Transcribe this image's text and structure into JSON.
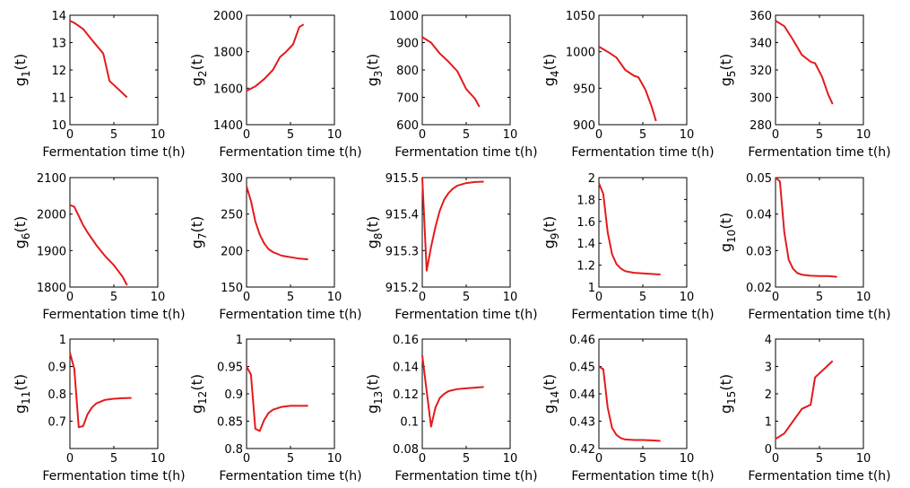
{
  "colors": {
    "series": "#e41a1c",
    "axes": "#000000",
    "background": "#ffffff"
  },
  "chart_data": [
    {
      "type": "line",
      "ylabel": "g_1(t)",
      "sub": "1",
      "xlabel": "Fermentation time t(h)",
      "xlim": [
        0,
        10
      ],
      "ylim": [
        10,
        14
      ],
      "xticks": [
        "0",
        "5",
        "10"
      ],
      "yticks": [
        "10",
        "11",
        "12",
        "13",
        "14"
      ],
      "series": [
        {
          "x": [
            0,
            0.5,
            1.5,
            2.5,
            3.8,
            4.5,
            5.5,
            6.5
          ],
          "y": [
            13.8,
            13.72,
            13.5,
            13.1,
            12.6,
            11.6,
            11.3,
            11.0
          ]
        }
      ]
    },
    {
      "type": "line",
      "ylabel": "g_2(t)",
      "sub": "2",
      "xlabel": "Fermentation time t(h)",
      "xlim": [
        0,
        10
      ],
      "ylim": [
        1400,
        2000
      ],
      "xticks": [
        "0",
        "5",
        "10"
      ],
      "yticks": [
        "1400",
        "1600",
        "1800",
        "2000"
      ],
      "series": [
        {
          "x": [
            0,
            1,
            2,
            3,
            3.8,
            4.5,
            5.3,
            6,
            6.5
          ],
          "y": [
            1585,
            1610,
            1650,
            1700,
            1770,
            1800,
            1840,
            1935,
            1950
          ]
        }
      ]
    },
    {
      "type": "line",
      "ylabel": "g_3(t)",
      "sub": "3",
      "xlabel": "Fermentation time t(h)",
      "xlim": [
        0,
        10
      ],
      "ylim": [
        600,
        1000
      ],
      "xticks": [
        "0",
        "5",
        "10"
      ],
      "yticks": [
        "600",
        "700",
        "800",
        "900",
        "1000"
      ],
      "series": [
        {
          "x": [
            0,
            1,
            2,
            3,
            4,
            5,
            6,
            6.5
          ],
          "y": [
            920,
            900,
            860,
            830,
            795,
            730,
            695,
            665
          ]
        }
      ]
    },
    {
      "type": "line",
      "ylabel": "g_4(t)",
      "sub": "4",
      "xlabel": "Fermentation time t(h)",
      "xlim": [
        0,
        10
      ],
      "ylim": [
        900,
        1050
      ],
      "xticks": [
        "0",
        "5",
        "10"
      ],
      "yticks": [
        "900",
        "950",
        "1000",
        "1050"
      ],
      "series": [
        {
          "x": [
            0,
            1,
            2,
            3,
            4,
            4.5,
            5.3,
            6,
            6.5
          ],
          "y": [
            1007,
            1000,
            992,
            975,
            967,
            965,
            948,
            925,
            905
          ]
        }
      ]
    },
    {
      "type": "line",
      "ylabel": "g_5(t)",
      "sub": "5",
      "xlabel": "Fermentation time t(h)",
      "xlim": [
        0,
        10
      ],
      "ylim": [
        280,
        360
      ],
      "xticks": [
        "0",
        "5",
        "10"
      ],
      "yticks": [
        "280",
        "300",
        "320",
        "340",
        "360"
      ],
      "series": [
        {
          "x": [
            0,
            1,
            2,
            3,
            4,
            4.5,
            5.3,
            6,
            6.5
          ],
          "y": [
            356,
            352,
            342,
            331,
            326,
            325,
            315,
            302,
            295
          ]
        }
      ]
    },
    {
      "type": "line",
      "ylabel": "g_6(t)",
      "sub": "6",
      "xlabel": "Fermentation time t(h)",
      "xlim": [
        0,
        10
      ],
      "ylim": [
        1800,
        2100
      ],
      "xticks": [
        "0",
        "5",
        "10"
      ],
      "yticks": [
        "1800",
        "1900",
        "2000",
        "2100"
      ],
      "series": [
        {
          "x": [
            0,
            0.5,
            1,
            1.5,
            2,
            3,
            4,
            5,
            6,
            6.5
          ],
          "y": [
            2025,
            2020,
            1995,
            1970,
            1950,
            1915,
            1885,
            1860,
            1828,
            1805
          ]
        }
      ]
    },
    {
      "type": "line",
      "ylabel": "g_7(t)",
      "sub": "7",
      "xlabel": "Fermentation time t(h)",
      "xlim": [
        0,
        10
      ],
      "ylim": [
        150,
        300
      ],
      "xticks": [
        "0",
        "5",
        "10"
      ],
      "yticks": [
        "150",
        "200",
        "250",
        "300"
      ],
      "series": [
        {
          "x": [
            0,
            0.5,
            1,
            1.5,
            2,
            2.5,
            3,
            4,
            5,
            6,
            7
          ],
          "y": [
            288,
            268,
            240,
            222,
            210,
            202,
            198,
            193,
            191,
            189,
            188
          ]
        }
      ]
    },
    {
      "type": "line",
      "ylabel": "g_8(t)",
      "sub": "8",
      "xlabel": "Fermentation time t(h)",
      "xlim": [
        0,
        10
      ],
      "ylim": [
        915.2,
        915.5
      ],
      "xticks": [
        "0",
        "5",
        "10"
      ],
      "yticks": [
        "915.2",
        "915.3",
        "915.4",
        "915.5"
      ],
      "series": [
        {
          "x": [
            0,
            0.5,
            1,
            1.5,
            2,
            2.5,
            3,
            3.5,
            4,
            5,
            6,
            7
          ],
          "y": [
            915.5,
            915.245,
            915.31,
            915.365,
            915.41,
            915.44,
            915.458,
            915.47,
            915.478,
            915.485,
            915.488,
            915.489
          ]
        }
      ]
    },
    {
      "type": "line",
      "ylabel": "g_9(t)",
      "sub": "9",
      "xlabel": "Fermentation time t(h)",
      "xlim": [
        0,
        10
      ],
      "ylim": [
        1,
        2
      ],
      "xticks": [
        "0",
        "5",
        "10"
      ],
      "yticks": [
        "1",
        "1.2",
        "1.4",
        "1.6",
        "1.8",
        "2"
      ],
      "series": [
        {
          "x": [
            0,
            0.5,
            1,
            1.5,
            2,
            2.5,
            3,
            4,
            5,
            6,
            7
          ],
          "y": [
            1.95,
            1.85,
            1.5,
            1.3,
            1.21,
            1.17,
            1.145,
            1.13,
            1.125,
            1.12,
            1.115
          ]
        }
      ]
    },
    {
      "type": "line",
      "ylabel": "g_10(t)",
      "sub": "10",
      "xlabel": "Fermentation time t(h)",
      "xlim": [
        0,
        10
      ],
      "ylim": [
        0.02,
        0.05
      ],
      "xticks": [
        "0",
        "5",
        "10"
      ],
      "yticks": [
        "0.02",
        "0.03",
        "0.04",
        "0.05"
      ],
      "series": [
        {
          "x": [
            0,
            0.5,
            1,
            1.5,
            2,
            2.5,
            3,
            4,
            5,
            6,
            7
          ],
          "y": [
            0.05,
            0.049,
            0.035,
            0.0275,
            0.025,
            0.0238,
            0.0234,
            0.0231,
            0.023,
            0.023,
            0.0228
          ]
        }
      ]
    },
    {
      "type": "line",
      "ylabel": "g_11(t)",
      "sub": "11",
      "xlabel": "Fermentation time t(h)",
      "xlim": [
        0,
        10
      ],
      "ylim": [
        0.6,
        1
      ],
      "xticks": [
        "0",
        "5",
        "10"
      ],
      "yticks": [
        "0.7",
        "0.8",
        "0.9",
        "1"
      ],
      "series": [
        {
          "x": [
            0,
            0.5,
            1,
            1.5,
            2,
            2.5,
            3,
            4,
            5,
            6,
            7
          ],
          "y": [
            0.95,
            0.89,
            0.678,
            0.682,
            0.725,
            0.75,
            0.765,
            0.778,
            0.782,
            0.784,
            0.785
          ]
        }
      ]
    },
    {
      "type": "line",
      "ylabel": "g_12(t)",
      "sub": "12",
      "xlabel": "Fermentation time t(h)",
      "xlim": [
        0,
        10
      ],
      "ylim": [
        0.8,
        1
      ],
      "xticks": [
        "0",
        "5",
        "10"
      ],
      "yticks": [
        "0.8",
        "0.85",
        "0.9",
        "0.95",
        "1"
      ],
      "series": [
        {
          "x": [
            0,
            0.5,
            1,
            1.5,
            2,
            2.5,
            3,
            4,
            5,
            6,
            7
          ],
          "y": [
            0.95,
            0.935,
            0.836,
            0.832,
            0.852,
            0.865,
            0.871,
            0.876,
            0.878,
            0.878,
            0.878
          ]
        }
      ]
    },
    {
      "type": "line",
      "ylabel": "g_13(t)",
      "sub": "13",
      "xlabel": "Fermentation time t(h)",
      "xlim": [
        0,
        10
      ],
      "ylim": [
        0.08,
        0.16
      ],
      "xticks": [
        "0",
        "5",
        "10"
      ],
      "yticks": [
        "0.08",
        "0.1",
        "0.12",
        "0.14",
        "0.16"
      ],
      "series": [
        {
          "x": [
            0,
            0.5,
            1,
            1.5,
            2,
            2.5,
            3,
            4,
            5,
            6,
            7
          ],
          "y": [
            0.148,
            0.122,
            0.096,
            0.11,
            0.117,
            0.12,
            0.122,
            0.1235,
            0.124,
            0.1245,
            0.125
          ]
        }
      ]
    },
    {
      "type": "line",
      "ylabel": "g_14(t)",
      "sub": "14",
      "xlabel": "Fermentation time t(h)",
      "xlim": [
        0,
        10
      ],
      "ylim": [
        0.42,
        0.46
      ],
      "xticks": [
        "0",
        "5",
        "10"
      ],
      "yticks": [
        "0.42",
        "0.43",
        "0.44",
        "0.45",
        "0.46"
      ],
      "series": [
        {
          "x": [
            0,
            0.5,
            1,
            1.5,
            2,
            2.5,
            3,
            4,
            5,
            6,
            7
          ],
          "y": [
            0.45,
            0.449,
            0.435,
            0.4275,
            0.425,
            0.4238,
            0.4233,
            0.4231,
            0.4231,
            0.423,
            0.4228
          ]
        }
      ]
    },
    {
      "type": "line",
      "ylabel": "g_15(t)",
      "sub": "15",
      "xlabel": "Fermentation time t(h)",
      "xlim": [
        0,
        10
      ],
      "ylim": [
        0,
        4
      ],
      "xticks": [
        "0",
        "5",
        "10"
      ],
      "yticks": [
        "0",
        "1",
        "2",
        "3",
        "4"
      ],
      "series": [
        {
          "x": [
            0,
            1,
            2,
            3,
            4,
            4.5,
            5.5,
            6.5
          ],
          "y": [
            0.35,
            0.55,
            1.0,
            1.45,
            1.6,
            2.6,
            2.9,
            3.2
          ]
        }
      ]
    }
  ]
}
